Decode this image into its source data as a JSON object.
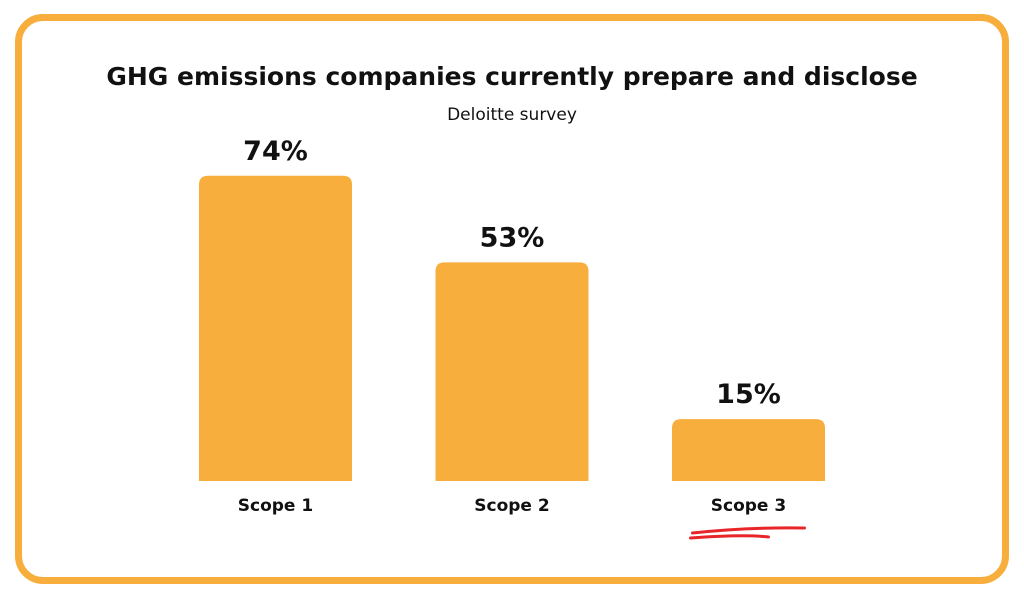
{
  "colors": {
    "bar": "#f8ae3c",
    "frame": "#f8ae3c",
    "underline": "#e8262a",
    "text": "#111111"
  },
  "chart_data": {
    "type": "bar",
    "title": "GHG emissions companies currently prepare and disclose",
    "subtitle": "Deloitte survey",
    "categories": [
      "Scope 1",
      "Scope 2",
      "Scope 3"
    ],
    "values": [
      74,
      53,
      15
    ],
    "value_labels": [
      "74%",
      "53%",
      "15%"
    ],
    "ylim": [
      0,
      100
    ],
    "grid": false,
    "legend": "none",
    "highlighted_category": "Scope 3"
  }
}
